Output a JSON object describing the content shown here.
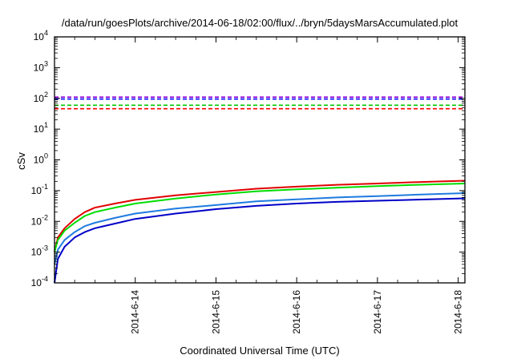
{
  "chart_data": {
    "type": "line",
    "title": "/data/run/goesPlots/archive/2014-06-18/02:00/flux/../bryn/5daysMarsAccumulated.plot",
    "xlabel": "Coordinated Universal Time (UTC)",
    "ylabel": "cSv",
    "yscale": "log",
    "ylim": [
      0.0001,
      10000
    ],
    "xlim": [
      "2014-06-13T00:00",
      "2014-06-18T02:00"
    ],
    "x_ticks": [
      "2014-6-14",
      "2014-6-15",
      "2014-6-16",
      "2014-6-17",
      "2014-6-18"
    ],
    "y_ticks": [
      {
        "base": "10",
        "exp": "-4"
      },
      {
        "base": "10",
        "exp": "-3"
      },
      {
        "base": "10",
        "exp": "-2"
      },
      {
        "base": "10",
        "exp": "-1"
      },
      {
        "base": "10",
        "exp": "0"
      },
      {
        "base": "10",
        "exp": "1"
      },
      {
        "base": "10",
        "exp": "2"
      },
      {
        "base": "10",
        "exp": "3"
      },
      {
        "base": "10",
        "exp": "4"
      }
    ],
    "grid": false,
    "legend": "none",
    "thresholds": [
      {
        "value": 110,
        "color": "#9400d3"
      },
      {
        "value": 95,
        "color": "#0000ff"
      },
      {
        "value": 60,
        "color": "#00c800"
      },
      {
        "value": 46,
        "color": "#ff0000"
      }
    ],
    "series": [
      {
        "color": "#e00000",
        "points": [
          [
            "2014-06-13T00:00",
            0.001
          ],
          [
            "2014-06-13T01:00",
            0.003
          ],
          [
            "2014-06-13T03:00",
            0.006
          ],
          [
            "2014-06-13T06:00",
            0.012
          ],
          [
            "2014-06-13T09:00",
            0.02
          ],
          [
            "2014-06-13T12:00",
            0.028
          ],
          [
            "2014-06-13T18:00",
            0.038
          ],
          [
            "2014-06-14T00:00",
            0.05
          ],
          [
            "2014-06-14T12:00",
            0.07
          ],
          [
            "2014-06-15T00:00",
            0.09
          ],
          [
            "2014-06-15T12:00",
            0.115
          ],
          [
            "2014-06-16T00:00",
            0.135
          ],
          [
            "2014-06-16T12:00",
            0.155
          ],
          [
            "2014-06-17T00:00",
            0.17
          ],
          [
            "2014-06-17T12:00",
            0.19
          ],
          [
            "2014-06-18T02:00",
            0.21
          ]
        ]
      },
      {
        "color": "#00dd00",
        "points": [
          [
            "2014-06-13T00:00",
            0.001
          ],
          [
            "2014-06-13T01:00",
            0.0025
          ],
          [
            "2014-06-13T03:00",
            0.005
          ],
          [
            "2014-06-13T06:00",
            0.009
          ],
          [
            "2014-06-13T09:00",
            0.015
          ],
          [
            "2014-06-13T12:00",
            0.02
          ],
          [
            "2014-06-13T18:00",
            0.028
          ],
          [
            "2014-06-14T00:00",
            0.038
          ],
          [
            "2014-06-14T12:00",
            0.055
          ],
          [
            "2014-06-15T00:00",
            0.075
          ],
          [
            "2014-06-15T12:00",
            0.095
          ],
          [
            "2014-06-16T00:00",
            0.11
          ],
          [
            "2014-06-16T12:00",
            0.125
          ],
          [
            "2014-06-17T00:00",
            0.14
          ],
          [
            "2014-06-17T12:00",
            0.155
          ],
          [
            "2014-06-18T02:00",
            0.17
          ]
        ]
      },
      {
        "color": "#1e7be0",
        "points": [
          [
            "2014-06-13T00:00",
            0.0004
          ],
          [
            "2014-06-13T01:00",
            0.0012
          ],
          [
            "2014-06-13T03:00",
            0.0025
          ],
          [
            "2014-06-13T06:00",
            0.0045
          ],
          [
            "2014-06-13T09:00",
            0.007
          ],
          [
            "2014-06-13T12:00",
            0.009
          ],
          [
            "2014-06-13T18:00",
            0.013
          ],
          [
            "2014-06-14T00:00",
            0.018
          ],
          [
            "2014-06-14T12:00",
            0.026
          ],
          [
            "2014-06-15T00:00",
            0.034
          ],
          [
            "2014-06-15T12:00",
            0.045
          ],
          [
            "2014-06-16T00:00",
            0.052
          ],
          [
            "2014-06-16T12:00",
            0.06
          ],
          [
            "2014-06-17T00:00",
            0.066
          ],
          [
            "2014-06-17T12:00",
            0.074
          ],
          [
            "2014-06-18T02:00",
            0.083
          ]
        ]
      },
      {
        "color": "#0000c8",
        "points": [
          [
            "2014-06-13T00:00",
            0.0001
          ],
          [
            "2014-06-13T01:00",
            0.0006
          ],
          [
            "2014-06-13T03:00",
            0.0015
          ],
          [
            "2014-06-13T06:00",
            0.003
          ],
          [
            "2014-06-13T09:00",
            0.0045
          ],
          [
            "2014-06-13T12:00",
            0.006
          ],
          [
            "2014-06-13T18:00",
            0.0085
          ],
          [
            "2014-06-14T00:00",
            0.012
          ],
          [
            "2014-06-14T12:00",
            0.018
          ],
          [
            "2014-06-15T00:00",
            0.025
          ],
          [
            "2014-06-15T12:00",
            0.032
          ],
          [
            "2014-06-16T00:00",
            0.038
          ],
          [
            "2014-06-16T12:00",
            0.043
          ],
          [
            "2014-06-17T00:00",
            0.047
          ],
          [
            "2014-06-17T12:00",
            0.051
          ],
          [
            "2014-06-18T02:00",
            0.056
          ]
        ]
      }
    ]
  }
}
